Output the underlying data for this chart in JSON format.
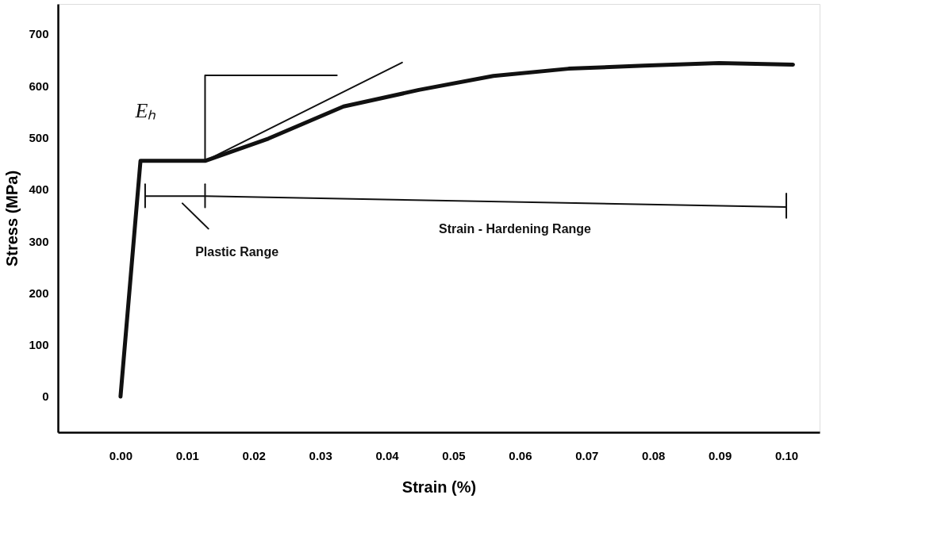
{
  "chart_data": {
    "type": "line",
    "xlabel": "Strain (%)",
    "ylabel": "Stress (MPa)",
    "xlim": [
      -0.0094,
      0.105
    ],
    "ylim": [
      -69,
      758
    ],
    "xticks": [
      {
        "value": 0,
        "label": "0.00"
      },
      {
        "value": 0.01,
        "label": "0.01"
      },
      {
        "value": 0.02,
        "label": "0.02"
      },
      {
        "value": 0.03,
        "label": "0.03"
      },
      {
        "value": 0.04,
        "label": "0.04"
      },
      {
        "value": 0.05,
        "label": "0.05"
      },
      {
        "value": 0.06,
        "label": "0.06"
      },
      {
        "value": 0.07,
        "label": "0.07"
      },
      {
        "value": 0.08,
        "label": "0.08"
      },
      {
        "value": 0.09,
        "label": "0.09"
      },
      {
        "value": 0.1,
        "label": "0.10"
      }
    ],
    "yticks": [
      0,
      100,
      200,
      300,
      400,
      500,
      600,
      700
    ],
    "grid": false,
    "legend": false,
    "marker": "none",
    "line_style": "solid",
    "series": [
      {
        "color": "#111111",
        "x": [
          0,
          0.003,
          0.0127,
          0.0222,
          0.0335,
          0.0448,
          0.056,
          0.0673,
          0.0786,
          0.0899,
          0.101
        ],
        "values": [
          0,
          455,
          455,
          498,
          560,
          592,
          619,
          633,
          639,
          644,
          641
        ]
      },
      {
        "color": "#111111",
        "x": [
          0.0127,
          0.0423
        ],
        "values": [
          455,
          645
        ]
      },
      {
        "color": "#111111",
        "x": [
          0.0127,
          0.0127,
          0.0325
        ],
        "values": [
          455,
          620,
          620
        ]
      },
      {
        "color": "#111111",
        "x": [
          0.0037,
          0.0127,
          0.1
        ],
        "values": [
          387,
          387,
          366
        ]
      },
      {
        "color": "#111111",
        "x": [
          0.0037,
          0.0037
        ],
        "values": [
          365,
          410
        ]
      },
      {
        "color": "#111111",
        "x": [
          0.0127,
          0.0127
        ],
        "values": [
          365,
          410
        ]
      },
      {
        "color": "#111111",
        "x": [
          0.1,
          0.1
        ],
        "values": [
          345,
          392
        ]
      },
      {
        "color": "#111111",
        "x": [
          0.0132,
          0.0093
        ],
        "values": [
          324,
          373
        ]
      }
    ],
    "annotations": [
      "Eₕ",
      "Plastic Range",
      "Strain - Hardening Range"
    ]
  }
}
